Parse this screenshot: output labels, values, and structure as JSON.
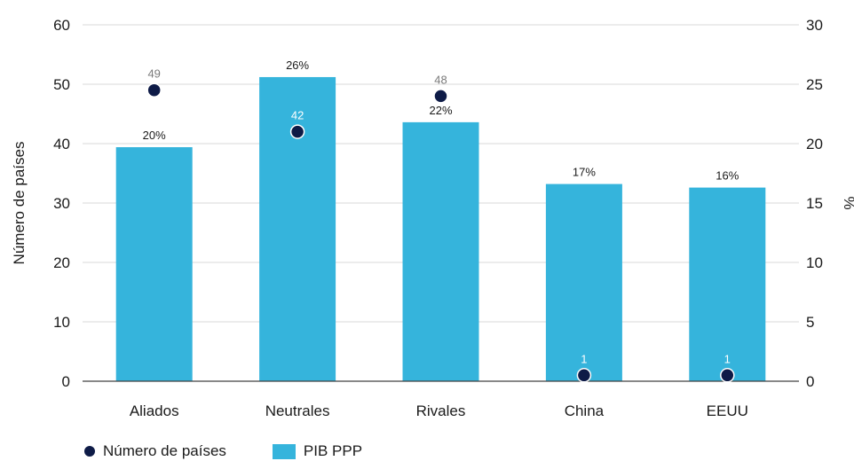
{
  "chart_data": {
    "type": "bar",
    "categories": [
      "Aliados",
      "Neutrales",
      "Rivales",
      "China",
      "EEUU"
    ],
    "series": [
      {
        "name": "PIB PPP",
        "kind": "bar",
        "axis": "right",
        "values": [
          19.7,
          25.6,
          21.8,
          16.6,
          16.3
        ],
        "labels": [
          "20%",
          "26%",
          "22%",
          "17%",
          "16%"
        ],
        "color": "#35b4dc"
      },
      {
        "name": "Número de países",
        "kind": "scatter",
        "axis": "left",
        "values": [
          49,
          42,
          48,
          1,
          1
        ],
        "labels": [
          "49",
          "42",
          "48",
          "1",
          "1"
        ],
        "label_colors": [
          "#7a7a7a",
          "#ffffff",
          "#7a7a7a",
          "#ffffff",
          "#ffffff"
        ],
        "color": "#0e1b47"
      }
    ],
    "ylabel": "Número de países",
    "ylabel_right": "%",
    "ylim": [
      0,
      60
    ],
    "ylim_right": [
      0,
      30
    ],
    "yticks": [
      "0",
      "10",
      "20",
      "30",
      "40",
      "50",
      "60"
    ],
    "yticks_right": [
      "0",
      "5",
      "10",
      "15",
      "20",
      "25",
      "30"
    ],
    "grid": true,
    "legend_position": "bottom-left"
  },
  "legend": {
    "dot_label": "Número de países",
    "bar_label": "PIB PPP"
  }
}
